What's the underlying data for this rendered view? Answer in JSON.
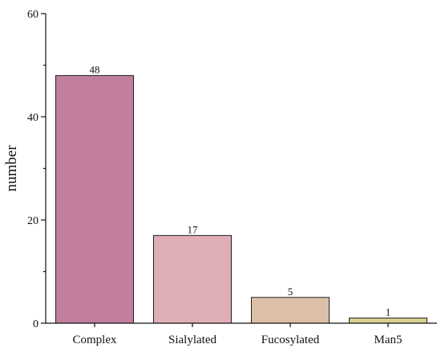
{
  "chart_data": {
    "type": "bar",
    "categories": [
      "Complex",
      "Sialylated",
      "Fucosylated",
      "Man5"
    ],
    "values": [
      48,
      17,
      5,
      1
    ],
    "data_labels": [
      "48",
      "17",
      "5",
      "1"
    ],
    "colors": [
      "#c17e9f",
      "#dfaeb6",
      "#dcbfa7",
      "#d6cf8f"
    ],
    "xlabel": "",
    "ylabel": "number",
    "ylim": [
      0,
      60
    ],
    "yticks": [
      0,
      20,
      40,
      60
    ],
    "grid": false,
    "legend": "none"
  }
}
